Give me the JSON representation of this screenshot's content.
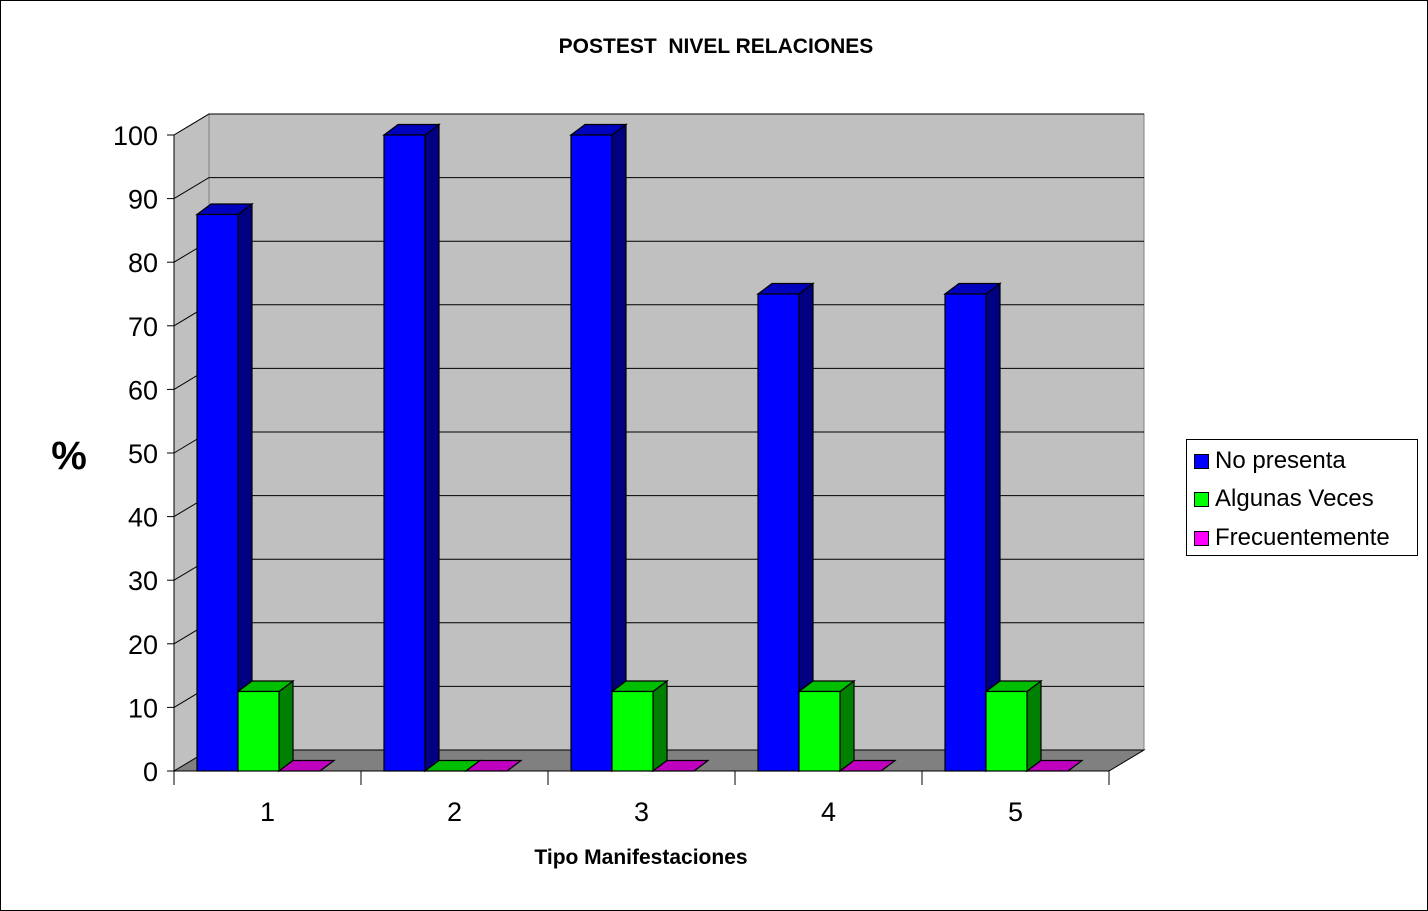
{
  "chart_data": {
    "type": "bar",
    "title": "POSTEST  NIVEL RELACIONES",
    "xlabel": "Tipo Manifestaciones",
    "ylabel": "%",
    "categories": [
      "1",
      "2",
      "3",
      "4",
      "5"
    ],
    "series": [
      {
        "name": "No presenta",
        "color": "#0000ff",
        "values": [
          87.5,
          100,
          100,
          75,
          75
        ]
      },
      {
        "name": "Algunas Veces",
        "color": "#00ff00",
        "values": [
          12.5,
          0,
          12.5,
          12.5,
          12.5
        ]
      },
      {
        "name": "Frecuentemente",
        "color": "#ff00ff",
        "values": [
          0,
          0,
          0,
          0,
          0
        ]
      }
    ],
    "ylim": [
      0,
      100
    ],
    "yticks": [
      0,
      10,
      20,
      30,
      40,
      50,
      60,
      70,
      80,
      90,
      100
    ],
    "grid": true,
    "legend_position": "right",
    "style": "3d-clustered-column",
    "wall_color": "#c0c0c0",
    "floor_color": "#808080"
  }
}
